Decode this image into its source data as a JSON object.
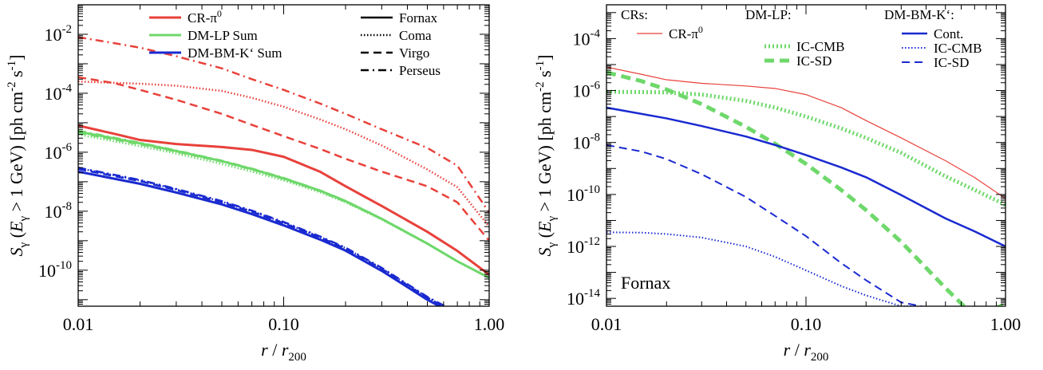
{
  "chart_data": [
    {
      "type": "line",
      "xscale": "log",
      "yscale": "log",
      "xlim": [
        0.01,
        1.0
      ],
      "ylim": [
        6e-12,
        0.1
      ],
      "xticks": [
        "0.01",
        "0.10",
        "1.00"
      ],
      "yticks": [
        {
          "base": "10",
          "exp": "-2",
          "v": 0.01
        },
        {
          "base": "10",
          "exp": "-4",
          "v": 0.0001
        },
        {
          "base": "10",
          "exp": "-6",
          "v": 1e-06
        },
        {
          "base": "10",
          "exp": "-8",
          "v": 1e-08
        },
        {
          "base": "10",
          "exp": "-10",
          "v": 1e-10
        }
      ],
      "xlabel_parts": {
        "r": "r",
        "slash": " / ",
        "r200": "r",
        "sub": "200"
      },
      "ylabel_parts": {
        "S": "S",
        "gamma": "γ",
        "open": " (",
        "E": "E",
        "cond": " > 1 GeV) [ph cm",
        "m2": "-2",
        "s": " s",
        "m1": "-1",
        "close": "]"
      },
      "legend_left": [
        {
          "label": "CR-π",
          "sup": "0",
          "color": "#e8413b",
          "dash": "solid",
          "width": 3
        },
        {
          "label": "DM-LP Sum",
          "sup": "",
          "color": "#6fd86b",
          "dash": "solid",
          "width": 3
        },
        {
          "label": "DM-BM-K‘ Sum",
          "sup": "",
          "color": "#1a2ad0",
          "dash": "solid",
          "width": 3
        }
      ],
      "legend_right": [
        {
          "label": "Fornax",
          "color": "#000000",
          "dash": "solid",
          "width": 2.5
        },
        {
          "label": "Coma",
          "color": "#000000",
          "dash": "dotted",
          "width": 2.5
        },
        {
          "label": "Virgo",
          "color": "#000000",
          "dash": "dashed",
          "width": 2.5
        },
        {
          "label": "Perseus",
          "color": "#000000",
          "dash": "dashdot",
          "width": 2.5
        }
      ],
      "series": [
        {
          "id": "cr-fornax",
          "color": "#e8413b",
          "dash": "solid",
          "width": 3,
          "x": [
            0.01,
            0.015,
            0.02,
            0.03,
            0.05,
            0.07,
            0.1,
            0.15,
            0.2,
            0.3,
            0.5,
            0.7,
            1.0
          ],
          "y": [
            8e-06,
            4.2e-06,
            2.6e-06,
            1.9e-06,
            1.5e-06,
            1.2e-06,
            7e-07,
            2.2e-07,
            7e-08,
            1.5e-08,
            2e-09,
            4.5e-10,
            7e-11
          ]
        },
        {
          "id": "cr-coma",
          "color": "#e8413b",
          "dash": "dotted",
          "width": 2.5,
          "x": [
            0.01,
            0.02,
            0.03,
            0.05,
            0.07,
            0.1,
            0.15,
            0.2,
            0.3,
            0.5,
            0.7,
            1.0
          ],
          "y": [
            0.00025,
            0.00021,
            0.00018,
            0.00012,
            7e-05,
            3.5e-05,
            1.3e-05,
            6e-06,
            1.7e-06,
            2.6e-07,
            6.5e-08,
            3e-09
          ]
        },
        {
          "id": "cr-virgo",
          "color": "#e8413b",
          "dash": "dashed",
          "width": 2.5,
          "x": [
            0.01,
            0.015,
            0.02,
            0.03,
            0.05,
            0.07,
            0.1,
            0.15,
            0.2,
            0.3,
            0.5,
            0.7,
            1.0
          ],
          "y": [
            0.00035,
            0.00022,
            0.00013,
            6e-05,
            2e-05,
            8.5e-06,
            3.5e-06,
            1.3e-06,
            6e-07,
            2.2e-07,
            7e-08,
            2e-08,
            1e-09
          ]
        },
        {
          "id": "cr-perseus",
          "color": "#e8413b",
          "dash": "dashdot",
          "width": 2.5,
          "x": [
            0.01,
            0.015,
            0.02,
            0.03,
            0.05,
            0.07,
            0.1,
            0.15,
            0.2,
            0.3,
            0.5,
            0.7,
            1.0
          ],
          "y": [
            0.008,
            0.005,
            0.0035,
            0.0018,
            0.0007,
            0.0003,
            0.00013,
            4.5e-05,
            2e-05,
            6e-06,
            1.4e-06,
            3.5e-07,
            9e-09
          ]
        },
        {
          "id": "lp-fornax",
          "color": "#6fd86b",
          "dash": "solid",
          "width": 3,
          "x": [
            0.01,
            0.02,
            0.03,
            0.05,
            0.07,
            0.1,
            0.15,
            0.2,
            0.3,
            0.5,
            0.7,
            1.0
          ],
          "y": [
            5e-06,
            2e-06,
            1.1e-06,
            5e-07,
            2.7e-07,
            1.3e-07,
            5e-08,
            2.2e-08,
            5.5e-09,
            8e-10,
            2e-10,
            5.5e-11
          ]
        },
        {
          "id": "lp-coma",
          "color": "#6fd86b",
          "dash": "dotted",
          "width": 2.5,
          "x": [
            0.01,
            0.02,
            0.03,
            0.05,
            0.07,
            0.1,
            0.15,
            0.2,
            0.3,
            0.5,
            0.7,
            1.0
          ],
          "y": [
            4e-06,
            1.6e-06,
            9e-07,
            4e-07,
            2.2e-07,
            1.1e-07,
            4.4e-08,
            2e-08,
            5.2e-09,
            7.8e-10,
            2e-10,
            5.5e-11
          ]
        },
        {
          "id": "lp-virgo",
          "color": "#6fd86b",
          "dash": "dashed",
          "width": 2.5,
          "x": [
            0.01,
            0.02,
            0.03,
            0.05,
            0.07,
            0.1,
            0.15,
            0.2,
            0.3,
            0.5,
            0.7,
            1.0
          ],
          "y": [
            4.6e-06,
            1.85e-06,
            1.05e-06,
            4.8e-07,
            2.6e-07,
            1.25e-07,
            4.8e-08,
            2.1e-08,
            5.4e-09,
            7.9e-10,
            2e-10,
            5.5e-11
          ]
        },
        {
          "id": "lp-perseus",
          "color": "#6fd86b",
          "dash": "dashdot",
          "width": 2.5,
          "x": [
            0.01,
            0.02,
            0.03,
            0.05,
            0.07,
            0.1,
            0.15,
            0.2,
            0.3,
            0.5,
            0.7,
            1.0
          ],
          "y": [
            5.4e-06,
            2.1e-06,
            1.15e-06,
            5.2e-07,
            2.8e-07,
            1.35e-07,
            5.1e-08,
            2.25e-08,
            5.6e-09,
            8.1e-10,
            2e-10,
            5.5e-11
          ]
        },
        {
          "id": "bm-fornax",
          "color": "#1a2ad0",
          "dash": "solid",
          "width": 3,
          "x": [
            0.01,
            0.02,
            0.03,
            0.05,
            0.07,
            0.1,
            0.15,
            0.2,
            0.3,
            0.5,
            0.6
          ],
          "y": [
            2.2e-07,
            8.5e-08,
            4.3e-08,
            1.7e-08,
            8e-09,
            3.3e-09,
            1.1e-09,
            4.6e-10,
            9.5e-11,
            1e-11,
            5e-12
          ]
        },
        {
          "id": "bm-coma",
          "color": "#1a2ad0",
          "dash": "dotted",
          "width": 2.5,
          "x": [
            0.01,
            0.02,
            0.03,
            0.05,
            0.07,
            0.1,
            0.15,
            0.2,
            0.3,
            0.5,
            0.62
          ],
          "y": [
            2.9e-07,
            1.1e-07,
            5.5e-08,
            2.1e-08,
            1e-08,
            4.1e-09,
            1.35e-09,
            5.6e-10,
            1.15e-10,
            1.2e-11,
            5e-12
          ]
        },
        {
          "id": "bm-virgo",
          "color": "#1a2ad0",
          "dash": "dashed",
          "width": 2.5,
          "x": [
            0.01,
            0.02,
            0.03,
            0.05,
            0.07,
            0.1,
            0.15,
            0.2,
            0.3,
            0.5,
            0.63
          ],
          "y": [
            2.7e-07,
            1.05e-07,
            5.2e-08,
            2e-08,
            9.6e-09,
            3.9e-09,
            1.3e-09,
            5.3e-10,
            1.1e-10,
            1.15e-11,
            5e-12
          ]
        },
        {
          "id": "bm-perseus",
          "color": "#1a2ad0",
          "dash": "dashdot",
          "width": 2.5,
          "x": [
            0.01,
            0.02,
            0.03,
            0.05,
            0.07,
            0.1,
            0.15,
            0.2,
            0.3,
            0.5,
            0.64
          ],
          "y": [
            3e-07,
            1.15e-07,
            5.7e-08,
            2.2e-08,
            1.05e-08,
            4.3e-09,
            1.4e-09,
            5.8e-10,
            1.2e-10,
            1.25e-11,
            5e-12
          ]
        }
      ]
    },
    {
      "type": "line",
      "xscale": "log",
      "yscale": "log",
      "xlim": [
        0.01,
        1.0
      ],
      "ylim": [
        5e-15,
        0.002
      ],
      "xticks": [
        "0.01",
        "0.10",
        "1.00"
      ],
      "yticks": [
        {
          "base": "10",
          "exp": "-4",
          "v": 0.0001
        },
        {
          "base": "10",
          "exp": "-6",
          "v": 1e-06
        },
        {
          "base": "10",
          "exp": "-8",
          "v": 1e-08
        },
        {
          "base": "10",
          "exp": "-10",
          "v": 1e-10
        },
        {
          "base": "10",
          "exp": "-12",
          "v": 1e-12
        },
        {
          "base": "10",
          "exp": "-14",
          "v": 1e-14
        }
      ],
      "xlabel_parts": {
        "r": "r",
        "slash": " / ",
        "r200": "r",
        "sub": "200"
      },
      "ylabel_parts": {
        "S": "S",
        "gamma": "γ",
        "open": " (",
        "E": "E",
        "cond": " > 1 GeV) [ph cm",
        "m2": "-2",
        "s": " s",
        "m1": "-1",
        "close": "]"
      },
      "annotation": "Fornax",
      "legend_groups": [
        {
          "title": "CRs:",
          "items": [
            {
              "label": "CR-π",
              "sup": "0",
              "color": "#e8413b",
              "dash": "solid",
              "width": 1.2
            }
          ]
        },
        {
          "title": "DM-LP:",
          "items": [
            {
              "label": "IC-CMB",
              "sup": "",
              "color": "#6fd86b",
              "dash": "dotted",
              "width": 5
            },
            {
              "label": "IC-SD",
              "sup": "",
              "color": "#6fd86b",
              "dash": "dashed",
              "width": 5
            }
          ]
        },
        {
          "title": "DM-BM-K‘:",
          "items": [
            {
              "label": "Cont.",
              "sup": "",
              "color": "#1a2ad0",
              "dash": "solid",
              "width": 2.5
            },
            {
              "label": "IC-CMB",
              "sup": "",
              "color": "#1a2ad0",
              "dash": "dotted",
              "width": 2
            },
            {
              "label": "IC-SD",
              "sup": "",
              "color": "#1a2ad0",
              "dash": "dashed",
              "width": 2
            }
          ]
        }
      ],
      "series": [
        {
          "id": "r-cr",
          "color": "#e8413b",
          "dash": "solid",
          "width": 1.2,
          "x": [
            0.01,
            0.015,
            0.02,
            0.03,
            0.05,
            0.07,
            0.1,
            0.15,
            0.2,
            0.3,
            0.5,
            0.7,
            1.0
          ],
          "y": [
            8e-06,
            4.2e-06,
            2.6e-06,
            1.9e-06,
            1.5e-06,
            1.2e-06,
            7e-07,
            2.2e-07,
            7e-08,
            1.5e-08,
            2e-09,
            4.5e-10,
            7e-11
          ]
        },
        {
          "id": "r-lp-cmb",
          "color": "#6fd86b",
          "dash": "dotted",
          "width": 5,
          "x": [
            0.01,
            0.02,
            0.03,
            0.05,
            0.07,
            0.1,
            0.15,
            0.2,
            0.3,
            0.5,
            0.7,
            1.0
          ],
          "y": [
            9e-07,
            8.5e-07,
            7e-07,
            4e-07,
            2.2e-07,
            1e-07,
            3.5e-08,
            1.5e-08,
            4e-09,
            5e-10,
            1.5e-10,
            4e-11
          ]
        },
        {
          "id": "r-lp-sd",
          "color": "#6fd86b",
          "dash": "dashed",
          "width": 5,
          "x": [
            0.01,
            0.015,
            0.02,
            0.03,
            0.05,
            0.07,
            0.1,
            0.15,
            0.2,
            0.3,
            0.5,
            0.7,
            1.0
          ],
          "y": [
            5e-06,
            2.3e-06,
            1.1e-06,
            3e-07,
            4e-08,
            9e-09,
            1.5e-09,
            1.5e-10,
            2.5e-11,
            1.5e-12,
            2.5e-14,
            2e-15,
            6e-15
          ]
        },
        {
          "id": "r-bm-cont",
          "color": "#1a2ad0",
          "dash": "solid",
          "width": 2.5,
          "x": [
            0.01,
            0.02,
            0.03,
            0.05,
            0.07,
            0.1,
            0.15,
            0.2,
            0.3,
            0.5,
            0.7,
            1.0
          ],
          "y": [
            2.2e-07,
            8.5e-08,
            4.3e-08,
            1.7e-08,
            8e-09,
            3.3e-09,
            1.1e-09,
            4.6e-10,
            9.5e-11,
            1.2e-11,
            3.8e-12,
            1e-12
          ]
        },
        {
          "id": "r-bm-cmb",
          "color": "#1a2ad0",
          "dash": "dotted",
          "width": 2,
          "x": [
            0.01,
            0.015,
            0.02,
            0.03,
            0.05,
            0.07,
            0.1,
            0.15,
            0.2,
            0.3,
            0.35
          ],
          "y": [
            3.5e-12,
            3.4e-12,
            3e-12,
            2.2e-12,
            1e-12,
            4e-13,
            1.2e-13,
            3e-14,
            1.3e-14,
            5e-15,
            5e-15
          ]
        },
        {
          "id": "r-bm-sd",
          "color": "#1a2ad0",
          "dash": "dashed",
          "width": 2,
          "x": [
            0.01,
            0.015,
            0.02,
            0.03,
            0.05,
            0.07,
            0.1,
            0.15,
            0.2,
            0.3,
            0.38
          ],
          "y": [
            8e-09,
            4.5e-09,
            2.3e-09,
            6e-10,
            8e-11,
            1.5e-11,
            2.5e-12,
            2.3e-13,
            5e-14,
            7e-15,
            5e-15
          ]
        }
      ]
    }
  ]
}
